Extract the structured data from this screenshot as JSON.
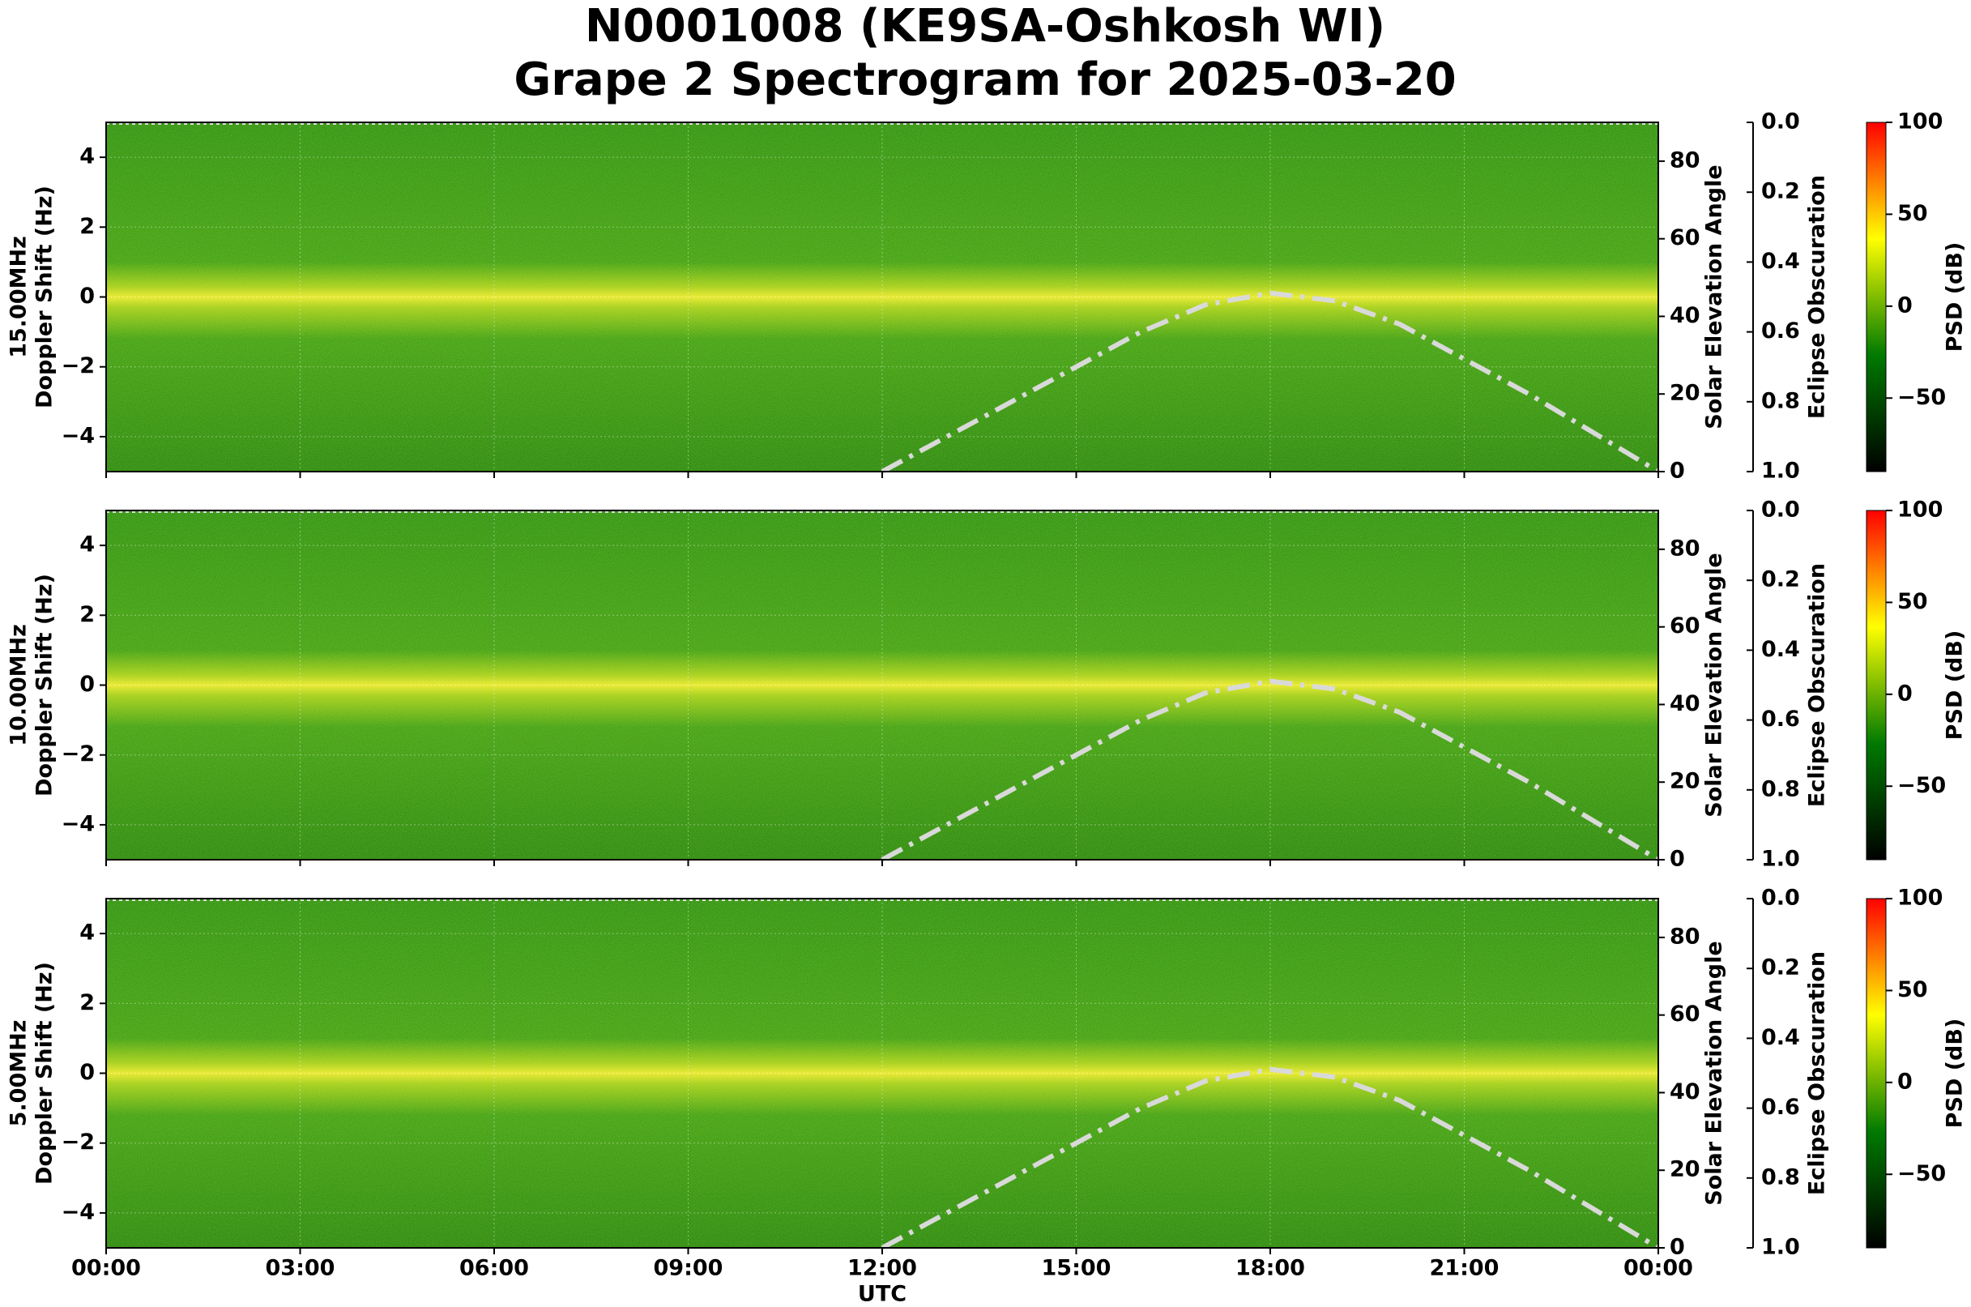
{
  "chart_data": [
    {
      "type": "spectrogram",
      "title": "N0001008 (KE9SA-Oshkosh WI)",
      "subtitle": "Grape 2 Spectrogram for 2025-03-20",
      "band": "15.00MHz",
      "ylabel": "Doppler Shift (Hz)",
      "y2label": "Solar Elevation Angle",
      "ylim": [
        -5,
        5
      ],
      "yticks": [
        {
          "value": -4,
          "label": "−4"
        },
        {
          "value": -2,
          "label": "−2"
        },
        0,
        2,
        4
      ],
      "y2lim": [
        0,
        90
      ],
      "y2ticks": [
        0,
        20,
        40,
        60,
        80
      ],
      "grid": true,
      "series": [
        {
          "axis": "y2",
          "color": "#d9d9d9",
          "x": [
            12,
            13,
            14,
            15,
            16,
            17,
            18,
            19,
            20,
            21,
            22,
            23,
            24
          ],
          "values": [
            0,
            9,
            18,
            27,
            36,
            43,
            46,
            44,
            38,
            29,
            20,
            10,
            0
          ]
        }
      ],
      "eclipse_axis": {
        "label": "Eclipse Obscuration",
        "lim": [
          1.0,
          0.0
        ],
        "ticks": [
          {
            "value": 0,
            "label": "0.0"
          },
          {
            "value": 0.2,
            "label": "0.2"
          },
          {
            "value": 0.4,
            "label": "0.4"
          },
          {
            "value": 0.6,
            "label": "0.6"
          },
          {
            "value": 0.8,
            "label": "0.8"
          },
          {
            "value": 1,
            "label": "1.0"
          }
        ]
      },
      "colorbar": {
        "label": "PSD (dB)",
        "lim": [
          -90,
          100
        ],
        "ticks": [
          {
            "value": -50,
            "label": "−50"
          },
          0,
          50,
          100
        ],
        "colors": [
          "#000000",
          "#007a00",
          "#ffff00",
          "#ff0000"
        ]
      }
    },
    {
      "type": "spectrogram",
      "band": "10.00MHz",
      "ylabel": "Doppler Shift (Hz)",
      "y2label": "Solar Elevation Angle",
      "ylim": [
        -5,
        5
      ],
      "yticks": [
        {
          "value": -4,
          "label": "−4"
        },
        {
          "value": -2,
          "label": "−2"
        },
        0,
        2,
        4
      ],
      "y2lim": [
        0,
        90
      ],
      "y2ticks": [
        0,
        20,
        40,
        60,
        80
      ],
      "grid": true,
      "series": [
        {
          "axis": "y2",
          "color": "#d9d9d9",
          "x": [
            12,
            13,
            14,
            15,
            16,
            17,
            18,
            19,
            20,
            21,
            22,
            23,
            24
          ],
          "values": [
            0,
            9,
            18,
            27,
            36,
            43,
            46,
            44,
            38,
            29,
            20,
            10,
            0
          ]
        }
      ],
      "eclipse_axis": {
        "label": "Eclipse Obscuration",
        "lim": [
          1.0,
          0.0
        ],
        "ticks": [
          {
            "value": 0,
            "label": "0.0"
          },
          {
            "value": 0.2,
            "label": "0.2"
          },
          {
            "value": 0.4,
            "label": "0.4"
          },
          {
            "value": 0.6,
            "label": "0.6"
          },
          {
            "value": 0.8,
            "label": "0.8"
          },
          {
            "value": 1,
            "label": "1.0"
          }
        ]
      },
      "colorbar": {
        "label": "PSD (dB)",
        "lim": [
          -90,
          100
        ],
        "ticks": [
          {
            "value": -50,
            "label": "−50"
          },
          0,
          50,
          100
        ],
        "colors": [
          "#000000",
          "#007a00",
          "#ffff00",
          "#ff0000"
        ]
      }
    },
    {
      "type": "spectrogram",
      "band": "5.00MHz",
      "ylabel": "Doppler Shift (Hz)",
      "y2label": "Solar Elevation Angle",
      "xlabel": "UTC",
      "xlim": [
        0,
        24
      ],
      "xticks": [
        {
          "value": 0,
          "label": "00:00"
        },
        {
          "value": 3,
          "label": "03:00"
        },
        {
          "value": 6,
          "label": "06:00"
        },
        {
          "value": 9,
          "label": "09:00"
        },
        {
          "value": 12,
          "label": "12:00"
        },
        {
          "value": 15,
          "label": "15:00"
        },
        {
          "value": 18,
          "label": "18:00"
        },
        {
          "value": 21,
          "label": "21:00"
        },
        {
          "value": 24,
          "label": "00:00"
        }
      ],
      "ylim": [
        -5,
        5
      ],
      "yticks": [
        {
          "value": -4,
          "label": "−4"
        },
        {
          "value": -2,
          "label": "−2"
        },
        0,
        2,
        4
      ],
      "y2lim": [
        0,
        90
      ],
      "y2ticks": [
        0,
        20,
        40,
        60,
        80
      ],
      "grid": true,
      "series": [
        {
          "axis": "y2",
          "color": "#d9d9d9",
          "x": [
            12,
            13,
            14,
            15,
            16,
            17,
            18,
            19,
            20,
            21,
            22,
            23,
            24
          ],
          "values": [
            0,
            9,
            18,
            27,
            36,
            43,
            46,
            44,
            38,
            29,
            20,
            10,
            0
          ]
        }
      ],
      "eclipse_axis": {
        "label": "Eclipse Obscuration",
        "lim": [
          1.0,
          0.0
        ],
        "ticks": [
          {
            "value": 0,
            "label": "0.0"
          },
          {
            "value": 0.2,
            "label": "0.2"
          },
          {
            "value": 0.4,
            "label": "0.4"
          },
          {
            "value": 0.6,
            "label": "0.6"
          },
          {
            "value": 0.8,
            "label": "0.8"
          },
          {
            "value": 1,
            "label": "1.0"
          }
        ]
      },
      "colorbar": {
        "label": "PSD (dB)",
        "lim": [
          -90,
          100
        ],
        "ticks": [
          {
            "value": -50,
            "label": "−50"
          },
          0,
          50,
          100
        ],
        "colors": [
          "#000000",
          "#007a00",
          "#ffff00",
          "#ff0000"
        ]
      }
    }
  ]
}
